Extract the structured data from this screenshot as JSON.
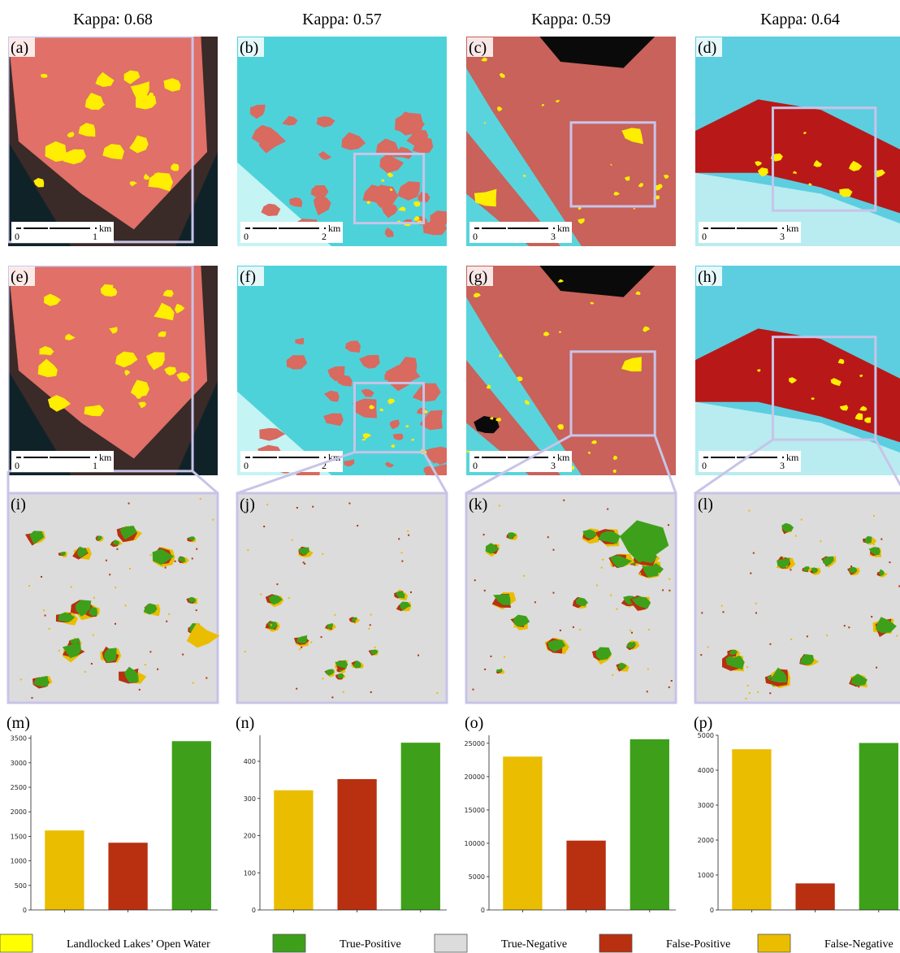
{
  "titles": [
    "Kappa: 0.68",
    "Kappa: 0.57",
    "Kappa: 0.59",
    "Kappa: 0.64"
  ],
  "panels": {
    "labels": [
      "(a)",
      "(b)",
      "(c)",
      "(d)",
      "(e)",
      "(f)",
      "(g)",
      "(h)",
      "(i)",
      "(j)",
      "(k)",
      "(l)"
    ]
  },
  "scale_bars": [
    {
      "zero": "0",
      "length": "1",
      "unit": "km"
    },
    {
      "zero": "0",
      "length": "2",
      "unit": "km"
    },
    {
      "zero": "0",
      "length": "3",
      "unit": "km"
    },
    {
      "zero": "0",
      "length": "3",
      "unit": "km"
    },
    {
      "zero": "0",
      "length": "1",
      "unit": "km"
    },
    {
      "zero": "0",
      "length": "2",
      "unit": "km"
    },
    {
      "zero": "0",
      "length": "3",
      "unit": "km"
    },
    {
      "zero": "0",
      "length": "3",
      "unit": "km"
    }
  ],
  "chart_data": [
    {
      "type": "bar",
      "title": "(m)",
      "categories": [
        null,
        null,
        null
      ],
      "values": [
        1620,
        1370,
        3440
      ],
      "colors": [
        "#eabd00",
        "#b83010",
        "#3ea01a"
      ],
      "ylim": [
        0,
        3560
      ],
      "yticks": [
        0,
        500,
        1000,
        1500,
        2000,
        2500,
        3000,
        3500
      ]
    },
    {
      "type": "bar",
      "title": "(n)",
      "categories": [
        null,
        null,
        null
      ],
      "values": [
        322,
        352,
        450
      ],
      "colors": [
        "#eabd00",
        "#b83010",
        "#3ea01a"
      ],
      "ylim": [
        0,
        470
      ],
      "yticks": [
        0,
        100,
        200,
        300,
        400
      ]
    },
    {
      "type": "bar",
      "title": "(o)",
      "categories": [
        null,
        null,
        null
      ],
      "values": [
        23000,
        10400,
        25600
      ],
      "colors": [
        "#eabd00",
        "#b83010",
        "#3ea01a"
      ],
      "ylim": [
        0,
        26200
      ],
      "yticks": [
        0,
        5000,
        10000,
        15000,
        20000,
        25000
      ]
    },
    {
      "type": "bar",
      "title": "(p)",
      "categories": [
        null,
        null,
        null
      ],
      "values": [
        4600,
        760,
        4780
      ],
      "colors": [
        "#eabd00",
        "#b83010",
        "#3ea01a"
      ],
      "ylim": [
        0,
        5000
      ],
      "yticks": [
        0,
        1000,
        2000,
        3000,
        4000,
        5000
      ]
    }
  ],
  "legend": {
    "items": [
      {
        "label": "Landlocked Lakes’ Open Water",
        "color": "#ffff00"
      },
      {
        "label": "True-Positive",
        "color": "#3ea01a"
      },
      {
        "label": "True-Negative",
        "color": "#dcdcdc"
      },
      {
        "label": "False-Positive",
        "color": "#b83010"
      },
      {
        "label": "False-Negative",
        "color": "#eabd00"
      }
    ]
  }
}
